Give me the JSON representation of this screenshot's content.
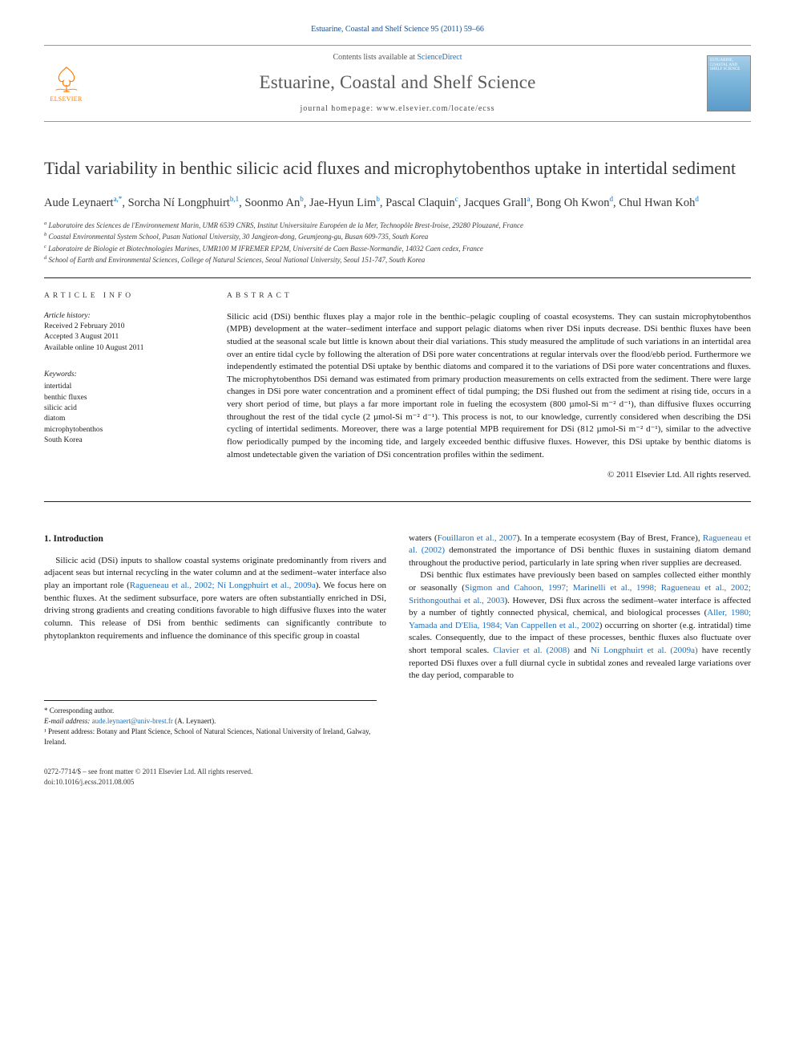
{
  "header_citation": "Estuarine, Coastal and Shelf Science 95 (2011) 59–66",
  "masthead": {
    "contents_prefix": "Contents lists available at ",
    "contents_link": "ScienceDirect",
    "journal_name": "Estuarine, Coastal and Shelf Science",
    "homepage_label": "journal homepage: www.elsevier.com/locate/ecss",
    "elsevier_label": "ELSEVIER",
    "cover_text": "ESTUARINE, COASTAL AND SHELF SCIENCE"
  },
  "article": {
    "title": "Tidal variability in benthic silicic acid fluxes and microphytobenthos uptake in intertidal sediment",
    "authors_html": "Aude Leynaert<sup>a,*</sup>, Sorcha Ní Longphuirt<sup>b,1</sup>, Soonmo An<sup>b</sup>, Jae-Hyun Lim<sup>b</sup>, Pascal Claquin<sup>c</sup>, Jacques Grall<sup>a</sup>, Bong Oh Kwon<sup>d</sup>, Chul Hwan Koh<sup>d</sup>",
    "affiliations": [
      "a Laboratoire des Sciences de l'Environnement Marin, UMR 6539 CNRS, Institut Universitaire Européen de la Mer, Technopôle Brest-Iroise, 29280 Plouzané, France",
      "b Coastal Environmental System School, Pusan National University, 30 Jangjeon-dong, Geumjeong-gu, Busan 609-735, South Korea",
      "c Laboratoire de Biologie et Biotechnologies Marines, UMR100 M IFREMER EP2M, Université de Caen Basse-Normandie, 14032 Caen cedex, France",
      "d School of Earth and Environmental Sciences, College of Natural Sciences, Seoul National University, Seoul 151-747, South Korea"
    ]
  },
  "info": {
    "article_info_heading": "ARTICLE INFO",
    "abstract_heading": "ABSTRACT",
    "history_label": "Article history:",
    "history_lines": [
      "Received 2 February 2010",
      "Accepted 3 August 2011",
      "Available online 10 August 2011"
    ],
    "keywords_label": "Keywords:",
    "keywords": [
      "intertidal",
      "benthic fluxes",
      "silicic acid",
      "diatom",
      "microphytobenthos",
      "South Korea"
    ],
    "abstract_text": "Silicic acid (DSi) benthic fluxes play a major role in the benthic–pelagic coupling of coastal ecosystems. They can sustain microphytobenthos (MPB) development at the water–sediment interface and support pelagic diatoms when river DSi inputs decrease. DSi benthic fluxes have been studied at the seasonal scale but little is known about their dial variations. This study measured the amplitude of such variations in an intertidal area over an entire tidal cycle by following the alteration of DSi pore water concentrations at regular intervals over the flood/ebb period. Furthermore we independently estimated the potential DSi uptake by benthic diatoms and compared it to the variations of DSi pore water concentrations and fluxes. The microphytobenthos DSi demand was estimated from primary production measurements on cells extracted from the sediment. There were large changes in DSi pore water concentration and a prominent effect of tidal pumping; the DSi flushed out from the sediment at rising tide, occurs in a very short period of time, but plays a far more important role in fueling the ecosystem (800 µmol-Si m⁻² d⁻¹), than diffusive fluxes occurring throughout the rest of the tidal cycle (2 µmol-Si m⁻² d⁻¹). This process is not, to our knowledge, currently considered when describing the DSi cycling of intertidal sediments. Moreover, there was a large potential MPB requirement for DSi (812 µmol-Si m⁻² d⁻¹), similar to the advective flow periodically pumped by the incoming tide, and largely exceeded benthic diffusive fluxes. However, this DSi uptake by benthic diatoms is almost undetectable given the variation of DSi concentration profiles within the sediment.",
    "copyright": "© 2011 Elsevier Ltd. All rights reserved."
  },
  "body": {
    "intro_heading": "1. Introduction",
    "col1_p1": "Silicic acid (DSi) inputs to shallow coastal systems originate predominantly from rivers and adjacent seas but internal recycling in the water column and at the sediment–water interface also play an important role (",
    "col1_cite1": "Ragueneau et al., 2002; Ní Longphuirt et al., 2009a",
    "col1_p1b": "). We focus here on benthic fluxes. At the sediment subsurface, pore waters are often substantially enriched in DSi, driving strong gradients and creating conditions favorable to high diffusive fluxes into the water column. This release of DSi from benthic sediments can significantly contribute to phytoplankton requirements and influence the dominance of this specific group in coastal",
    "col2_p1a": "waters (",
    "col2_cite1": "Fouillaron et al., 2007",
    "col2_p1b": "). In a temperate ecosystem (Bay of Brest, France), ",
    "col2_cite2": "Ragueneau et al. (2002)",
    "col2_p1c": " demonstrated the importance of DSi benthic fluxes in sustaining diatom demand throughout the productive period, particularly in late spring when river supplies are decreased.",
    "col2_p2a": "DSi benthic flux estimates have previously been based on samples collected either monthly or seasonally (",
    "col2_cite3": "Sigmon and Cahoon, 1997; Marinelli et al., 1998; Ragueneau et al., 2002; Srithongouthai et al., 2003",
    "col2_p2b": "). However, DSi flux across the sediment–water interface is affected by a number of tightly connected physical, chemical, and biological processes (",
    "col2_cite4": "Aller, 1980; Yamada and D'Elia, 1984; Van Cappellen et al., 2002",
    "col2_p2c": ") occurring on shorter (e.g. intratidal) time scales. Consequently, due to the impact of these processes, benthic fluxes also fluctuate over short temporal scales. ",
    "col2_cite5": "Clavier et al. (2008)",
    "col2_p2d": " and ",
    "col2_cite6": "Ní Longphuirt et al. (2009a)",
    "col2_p2e": " have recently reported DSi fluxes over a full diurnal cycle in subtidal zones and revealed large variations over the day period, comparable to"
  },
  "footnotes": {
    "corresponding": "* Corresponding author.",
    "email_label": "E-mail address: ",
    "email": "aude.leynaert@univ-brest.fr",
    "email_suffix": " (A. Leynaert).",
    "note1": "¹ Present address: Botany and Plant Science, School of Natural Sciences, National University of Ireland, Galway, Ireland."
  },
  "bottom": {
    "line1": "0272-7714/$ – see front matter © 2011 Elsevier Ltd. All rights reserved.",
    "line2": "doi:10.1016/j.ecss.2011.08.005"
  },
  "colors": {
    "link": "#1a6fbf",
    "elsevier_orange": "#ff7a00",
    "text": "#1a1a1a",
    "heading_gray": "#5a5a5a"
  }
}
